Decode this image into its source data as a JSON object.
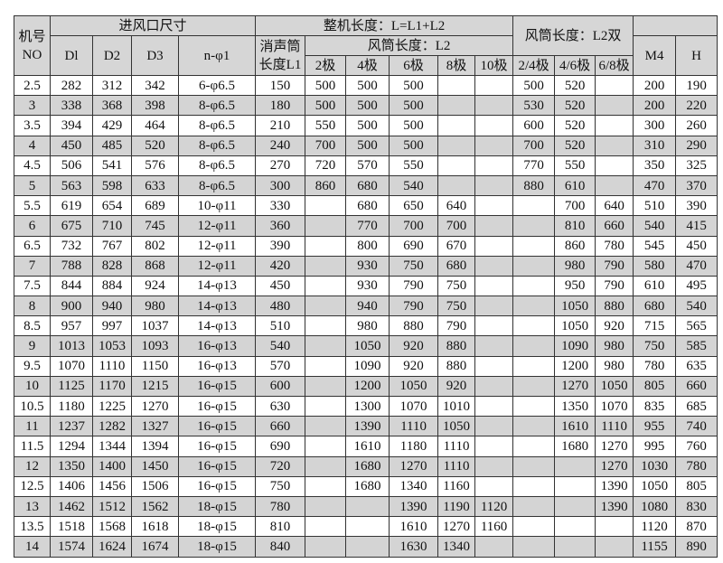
{
  "header": {
    "no": "机号\nNO",
    "no_line1": "机号",
    "no_line2": "NO",
    "inlet_group": "进风口尺寸",
    "total_length_group": "整机长度：L=L1+L2",
    "duct_double_group": "风筒长度：L2双",
    "d1": "Dl",
    "d2": "D2",
    "d3": "D3",
    "holes": "n-φ1",
    "silencer_line1": "消声筒",
    "silencer_line2": "长度L1",
    "duct_l2": "风筒长度：L2",
    "m4": "M4",
    "h": "H",
    "poles": [
      "2极",
      "4极",
      "6极",
      "8极",
      "10极"
    ],
    "double_poles": [
      "2/4极",
      "4/6极",
      "6/8极"
    ]
  },
  "rows": [
    [
      "2.5",
      "282",
      "312",
      "342",
      "6-φ6.5",
      "150",
      "500",
      "500",
      "500",
      "",
      "",
      "500",
      "520",
      "",
      "200",
      "190"
    ],
    [
      "3",
      "338",
      "368",
      "398",
      "8-φ6.5",
      "180",
      "500",
      "500",
      "500",
      "",
      "",
      "530",
      "520",
      "",
      "200",
      "220"
    ],
    [
      "3.5",
      "394",
      "429",
      "464",
      "8-φ6.5",
      "210",
      "550",
      "500",
      "500",
      "",
      "",
      "600",
      "520",
      "",
      "300",
      "260"
    ],
    [
      "4",
      "450",
      "485",
      "520",
      "8-φ6.5",
      "240",
      "700",
      "500",
      "500",
      "",
      "",
      "700",
      "520",
      "",
      "310",
      "290"
    ],
    [
      "4.5",
      "506",
      "541",
      "576",
      "8-φ6.5",
      "270",
      "720",
      "570",
      "550",
      "",
      "",
      "770",
      "550",
      "",
      "350",
      "325"
    ],
    [
      "5",
      "563",
      "598",
      "633",
      "8-φ6.5",
      "300",
      "860",
      "680",
      "540",
      "",
      "",
      "880",
      "610",
      "",
      "470",
      "370"
    ],
    [
      "5.5",
      "619",
      "654",
      "689",
      "10-φ11",
      "330",
      "",
      "680",
      "650",
      "640",
      "",
      "",
      "700",
      "640",
      "510",
      "390"
    ],
    [
      "6",
      "675",
      "710",
      "745",
      "12-φ11",
      "360",
      "",
      "770",
      "700",
      "700",
      "",
      "",
      "810",
      "660",
      "540",
      "415"
    ],
    [
      "6.5",
      "732",
      "767",
      "802",
      "12-φ11",
      "390",
      "",
      "800",
      "690",
      "670",
      "",
      "",
      "860",
      "780",
      "545",
      "450"
    ],
    [
      "7",
      "788",
      "828",
      "868",
      "12-φ11",
      "420",
      "",
      "930",
      "750",
      "680",
      "",
      "",
      "980",
      "790",
      "580",
      "470"
    ],
    [
      "7.5",
      "844",
      "884",
      "924",
      "14-φ13",
      "450",
      "",
      "930",
      "790",
      "750",
      "",
      "",
      "950",
      "790",
      "610",
      "495"
    ],
    [
      "8",
      "900",
      "940",
      "980",
      "14-φ13",
      "480",
      "",
      "940",
      "790",
      "750",
      "",
      "",
      "1050",
      "880",
      "680",
      "540"
    ],
    [
      "8.5",
      "957",
      "997",
      "1037",
      "14-φ13",
      "510",
      "",
      "980",
      "880",
      "790",
      "",
      "",
      "1050",
      "920",
      "715",
      "565"
    ],
    [
      "9",
      "1013",
      "1053",
      "1093",
      "16-φ13",
      "540",
      "",
      "1050",
      "920",
      "880",
      "",
      "",
      "1090",
      "980",
      "750",
      "585"
    ],
    [
      "9.5",
      "1070",
      "1110",
      "1150",
      "16-φ13",
      "570",
      "",
      "1090",
      "920",
      "880",
      "",
      "",
      "1200",
      "980",
      "780",
      "635"
    ],
    [
      "10",
      "1125",
      "1170",
      "1215",
      "16-φ15",
      "600",
      "",
      "1200",
      "1050",
      "920",
      "",
      "",
      "1270",
      "1050",
      "805",
      "660"
    ],
    [
      "10.5",
      "1180",
      "1225",
      "1270",
      "16-φ15",
      "630",
      "",
      "1300",
      "1070",
      "1010",
      "",
      "",
      "1350",
      "1070",
      "835",
      "685"
    ],
    [
      "11",
      "1237",
      "1282",
      "1327",
      "16-φ15",
      "660",
      "",
      "1390",
      "1110",
      "1050",
      "",
      "",
      "1610",
      "1110",
      "955",
      "740"
    ],
    [
      "11.5",
      "1294",
      "1344",
      "1394",
      "16-φ15",
      "690",
      "",
      "1610",
      "1180",
      "1110",
      "",
      "",
      "1680",
      "1270",
      "995",
      "760"
    ],
    [
      "12",
      "1350",
      "1400",
      "1450",
      "16-φ15",
      "720",
      "",
      "1680",
      "1270",
      "1110",
      "",
      "",
      "",
      "1270",
      "1030",
      "780"
    ],
    [
      "12.5",
      "1406",
      "1456",
      "1506",
      "16-φ15",
      "750",
      "",
      "1680",
      "1340",
      "1160",
      "",
      "",
      "",
      "1390",
      "1050",
      "805"
    ],
    [
      "13",
      "1462",
      "1512",
      "1562",
      "18-φ15",
      "780",
      "",
      "",
      "1390",
      "1190",
      "1120",
      "",
      "",
      "1390",
      "1080",
      "830"
    ],
    [
      "13.5",
      "1518",
      "1568",
      "1618",
      "18-φ15",
      "810",
      "",
      "",
      "1610",
      "1270",
      "1160",
      "",
      "",
      "",
      "1120",
      "870"
    ],
    [
      "14",
      "1574",
      "1624",
      "1674",
      "18-φ15",
      "840",
      "",
      "",
      "1630",
      "1340",
      "",
      "",
      "",
      "",
      "1155",
      "890"
    ]
  ]
}
